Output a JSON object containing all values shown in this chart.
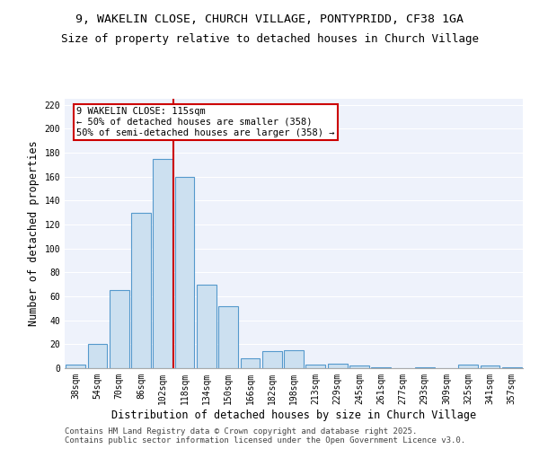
{
  "title_line1": "9, WAKELIN CLOSE, CHURCH VILLAGE, PONTYPRIDD, CF38 1GA",
  "title_line2": "Size of property relative to detached houses in Church Village",
  "xlabel": "Distribution of detached houses by size in Church Village",
  "ylabel": "Number of detached properties",
  "categories": [
    "38sqm",
    "54sqm",
    "70sqm",
    "86sqm",
    "102sqm",
    "118sqm",
    "134sqm",
    "150sqm",
    "166sqm",
    "182sqm",
    "198sqm",
    "213sqm",
    "229sqm",
    "245sqm",
    "261sqm",
    "277sqm",
    "293sqm",
    "309sqm",
    "325sqm",
    "341sqm",
    "357sqm"
  ],
  "values": [
    3,
    20,
    65,
    130,
    175,
    160,
    70,
    52,
    8,
    14,
    15,
    3,
    4,
    2,
    1,
    0,
    1,
    0,
    3,
    2,
    1
  ],
  "bar_color": "#cce0f0",
  "bar_edge_color": "#5599cc",
  "bar_edge_width": 0.8,
  "vline_color": "#cc0000",
  "annotation_line1": "9 WAKELIN CLOSE: 115sqm",
  "annotation_line2": "← 50% of detached houses are smaller (358)",
  "annotation_line3": "50% of semi-detached houses are larger (358) →",
  "annotation_box_color": "#cc0000",
  "ylim": [
    0,
    225
  ],
  "yticks": [
    0,
    20,
    40,
    60,
    80,
    100,
    120,
    140,
    160,
    180,
    200,
    220
  ],
  "background_color": "#eef2fb",
  "grid_color": "#ffffff",
  "footer_line1": "Contains HM Land Registry data © Crown copyright and database right 2025.",
  "footer_line2": "Contains public sector information licensed under the Open Government Licence v3.0.",
  "title_fontsize": 9.5,
  "subtitle_fontsize": 9,
  "axis_label_fontsize": 8.5,
  "tick_fontsize": 7,
  "annotation_fontsize": 7.5,
  "footer_fontsize": 6.5
}
